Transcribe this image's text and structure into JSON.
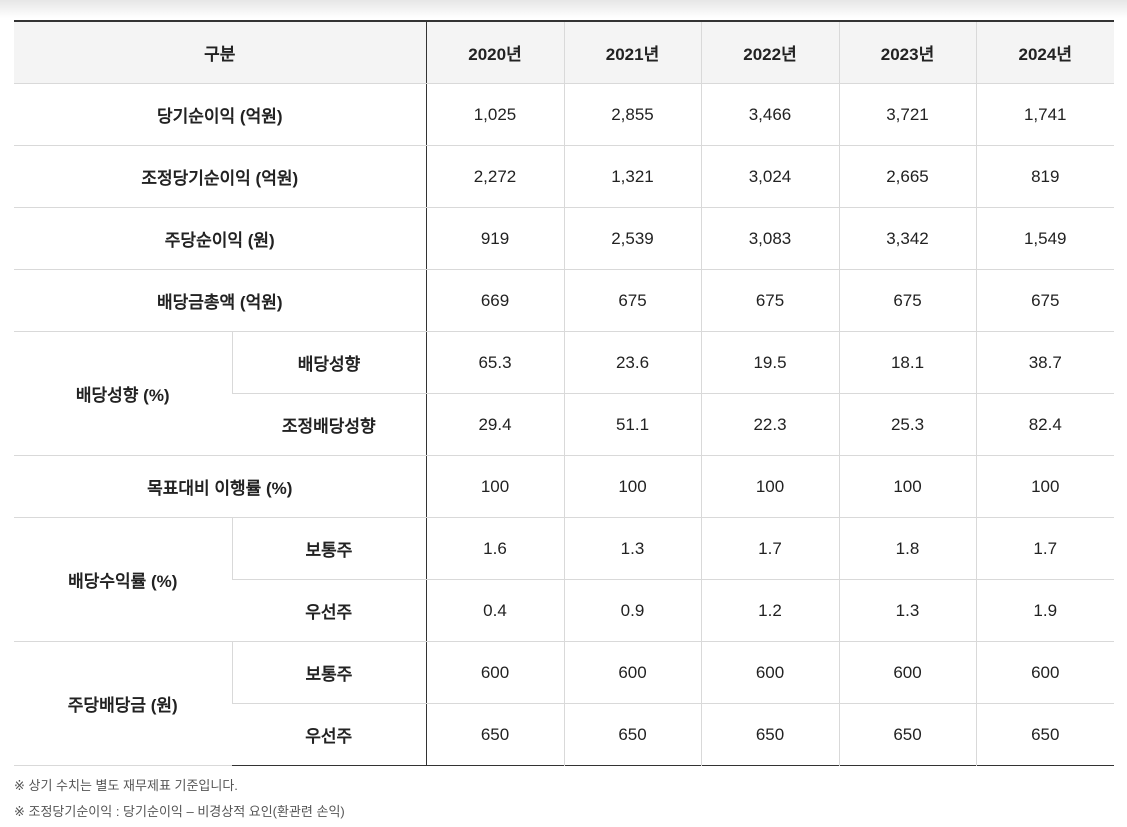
{
  "table": {
    "header": {
      "category": "구분",
      "years": [
        "2020년",
        "2021년",
        "2022년",
        "2023년",
        "2024년"
      ]
    },
    "rows": [
      {
        "label": "당기순이익 (억원)",
        "values": [
          "1,025",
          "2,855",
          "3,466",
          "3,721",
          "1,741"
        ]
      },
      {
        "label": "조정당기순이익 (억원)",
        "values": [
          "2,272",
          "1,321",
          "3,024",
          "2,665",
          "819"
        ]
      },
      {
        "label": "주당순이익 (원)",
        "values": [
          "919",
          "2,539",
          "3,083",
          "3,342",
          "1,549"
        ]
      },
      {
        "label": "배당금총액 (억원)",
        "values": [
          "669",
          "675",
          "675",
          "675",
          "675"
        ]
      }
    ],
    "payout_group": {
      "label": "배당성향 (%)",
      "sub": [
        {
          "label": "배당성향",
          "values": [
            "65.3",
            "23.6",
            "19.5",
            "18.1",
            "38.7"
          ]
        },
        {
          "label": "조정배당성향",
          "values": [
            "29.4",
            "51.1",
            "22.3",
            "25.3",
            "82.4"
          ]
        }
      ]
    },
    "target_row": {
      "label": "목표대비 이행률 (%)",
      "values": [
        "100",
        "100",
        "100",
        "100",
        "100"
      ]
    },
    "yield_group": {
      "label": "배당수익률 (%)",
      "sub": [
        {
          "label": "보통주",
          "values": [
            "1.6",
            "1.3",
            "1.7",
            "1.8",
            "1.7"
          ]
        },
        {
          "label": "우선주",
          "values": [
            "0.4",
            "0.9",
            "1.2",
            "1.3",
            "1.9"
          ]
        }
      ]
    },
    "dps_group": {
      "label": "주당배당금 (원)",
      "sub": [
        {
          "label": "보통주",
          "values": [
            "600",
            "600",
            "600",
            "600",
            "600"
          ]
        },
        {
          "label": "우선주",
          "values": [
            "650",
            "650",
            "650",
            "650",
            "650"
          ]
        }
      ]
    }
  },
  "notes": [
    "※ 상기 수치는 별도 재무제표 기준입니다.",
    "※ 조정당기순이익 : 당기순이익 – 비경상적 요인(환관련 손익)"
  ]
}
